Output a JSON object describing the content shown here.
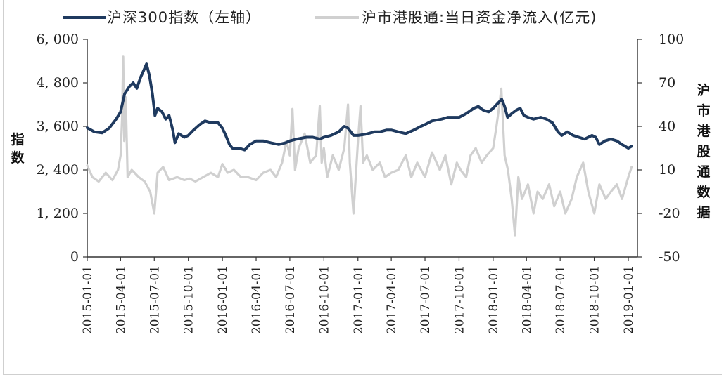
{
  "chart_data": {
    "type": "line",
    "legend": [
      {
        "label": "沪深300指数（左轴）",
        "color": "#1f3a5f"
      },
      {
        "label": "沪市港股通:当日资金净流入(亿元)",
        "color": "#d0d0d0"
      }
    ],
    "y_left": {
      "title": "指数",
      "range": [
        0,
        6000
      ],
      "ticks": [
        0,
        1200,
        2400,
        3600,
        4800,
        6000
      ],
      "tick_labels": [
        "0",
        "1, 200",
        "2, 400",
        "3, 600",
        "4, 800",
        "6, 000"
      ]
    },
    "y_right": {
      "title": "沪市港股通数据",
      "range": [
        -50,
        100
      ],
      "ticks": [
        -50,
        -20,
        10,
        40,
        70,
        100
      ],
      "tick_labels": [
        "-50",
        "-20",
        "10",
        "40",
        "70",
        "100"
      ]
    },
    "x": {
      "range": [
        "2015-01-01",
        "2019-01-15"
      ],
      "ticks": [
        "2015-01-01",
        "2015-04-01",
        "2015-07-01",
        "2015-10-01",
        "2016-01-01",
        "2016-04-01",
        "2016-07-01",
        "2016-10-01",
        "2017-01-01",
        "2017-04-01",
        "2017-07-01",
        "2017-10-01",
        "2018-01-01",
        "2018-04-01",
        "2018-07-01",
        "2018-10-01",
        "2019-01-01"
      ]
    },
    "series": [
      {
        "name": "沪深300指数（左轴）",
        "axis": "left",
        "color": "#1f3a5f",
        "points": [
          [
            "2015-01-01",
            3560
          ],
          [
            "2015-01-20",
            3450
          ],
          [
            "2015-02-10",
            3420
          ],
          [
            "2015-03-01",
            3550
          ],
          [
            "2015-03-20",
            3800
          ],
          [
            "2015-04-01",
            4000
          ],
          [
            "2015-04-12",
            4500
          ],
          [
            "2015-04-25",
            4700
          ],
          [
            "2015-05-05",
            4800
          ],
          [
            "2015-05-15",
            4650
          ],
          [
            "2015-05-25",
            4950
          ],
          [
            "2015-06-05",
            5200
          ],
          [
            "2015-06-10",
            5320
          ],
          [
            "2015-06-18",
            5000
          ],
          [
            "2015-06-26",
            4500
          ],
          [
            "2015-07-03",
            3900
          ],
          [
            "2015-07-10",
            4100
          ],
          [
            "2015-07-22",
            4000
          ],
          [
            "2015-08-01",
            3800
          ],
          [
            "2015-08-10",
            3900
          ],
          [
            "2015-08-20",
            3500
          ],
          [
            "2015-08-26",
            3150
          ],
          [
            "2015-09-05",
            3400
          ],
          [
            "2015-09-20",
            3300
          ],
          [
            "2015-10-01",
            3350
          ],
          [
            "2015-10-15",
            3500
          ],
          [
            "2015-11-01",
            3650
          ],
          [
            "2015-11-15",
            3750
          ],
          [
            "2015-12-01",
            3700
          ],
          [
            "2015-12-20",
            3700
          ],
          [
            "2016-01-01",
            3550
          ],
          [
            "2016-01-10",
            3350
          ],
          [
            "2016-01-20",
            3100
          ],
          [
            "2016-01-28",
            3000
          ],
          [
            "2016-02-15",
            3000
          ],
          [
            "2016-03-01",
            2950
          ],
          [
            "2016-03-15",
            3100
          ],
          [
            "2016-04-01",
            3200
          ],
          [
            "2016-04-20",
            3200
          ],
          [
            "2016-05-10",
            3150
          ],
          [
            "2016-06-01",
            3100
          ],
          [
            "2016-06-20",
            3150
          ],
          [
            "2016-07-01",
            3200
          ],
          [
            "2016-07-20",
            3250
          ],
          [
            "2016-08-15",
            3300
          ],
          [
            "2016-09-01",
            3300
          ],
          [
            "2016-09-20",
            3250
          ],
          [
            "2016-10-01",
            3300
          ],
          [
            "2016-10-20",
            3350
          ],
          [
            "2016-11-10",
            3450
          ],
          [
            "2016-11-25",
            3600
          ],
          [
            "2016-12-05",
            3550
          ],
          [
            "2016-12-20",
            3350
          ],
          [
            "2017-01-01",
            3350
          ],
          [
            "2017-01-20",
            3380
          ],
          [
            "2017-02-15",
            3450
          ],
          [
            "2017-03-01",
            3450
          ],
          [
            "2017-03-20",
            3500
          ],
          [
            "2017-04-01",
            3500
          ],
          [
            "2017-04-20",
            3450
          ],
          [
            "2017-05-10",
            3400
          ],
          [
            "2017-06-01",
            3500
          ],
          [
            "2017-06-20",
            3600
          ],
          [
            "2017-07-01",
            3650
          ],
          [
            "2017-07-20",
            3750
          ],
          [
            "2017-08-15",
            3800
          ],
          [
            "2017-09-01",
            3850
          ],
          [
            "2017-09-20",
            3850
          ],
          [
            "2017-10-01",
            3850
          ],
          [
            "2017-10-20",
            3950
          ],
          [
            "2017-11-10",
            4100
          ],
          [
            "2017-11-22",
            4150
          ],
          [
            "2017-12-05",
            4050
          ],
          [
            "2017-12-20",
            4000
          ],
          [
            "2018-01-01",
            4100
          ],
          [
            "2018-01-15",
            4250
          ],
          [
            "2018-01-24",
            4350
          ],
          [
            "2018-02-01",
            4150
          ],
          [
            "2018-02-09",
            3850
          ],
          [
            "2018-02-20",
            3950
          ],
          [
            "2018-03-05",
            4050
          ],
          [
            "2018-03-15",
            4100
          ],
          [
            "2018-03-25",
            3900
          ],
          [
            "2018-04-05",
            3850
          ],
          [
            "2018-04-20",
            3800
          ],
          [
            "2018-05-10",
            3850
          ],
          [
            "2018-05-25",
            3800
          ],
          [
            "2018-06-10",
            3700
          ],
          [
            "2018-06-25",
            3450
          ],
          [
            "2018-07-05",
            3350
          ],
          [
            "2018-07-20",
            3450
          ],
          [
            "2018-08-05",
            3350
          ],
          [
            "2018-08-20",
            3300
          ],
          [
            "2018-09-05",
            3250
          ],
          [
            "2018-09-25",
            3350
          ],
          [
            "2018-10-05",
            3300
          ],
          [
            "2018-10-15",
            3100
          ],
          [
            "2018-10-30",
            3200
          ],
          [
            "2018-11-15",
            3250
          ],
          [
            "2018-12-01",
            3200
          ],
          [
            "2018-12-15",
            3100
          ],
          [
            "2019-01-01",
            3000
          ],
          [
            "2019-01-10",
            3050
          ]
        ]
      },
      {
        "name": "沪市港股通:当日资金净流入(亿元)",
        "axis": "right",
        "color": "#d0d0d0",
        "points": [
          [
            "2015-01-01",
            13
          ],
          [
            "2015-01-15",
            5
          ],
          [
            "2015-02-01",
            2
          ],
          [
            "2015-02-20",
            8
          ],
          [
            "2015-03-10",
            3
          ],
          [
            "2015-03-25",
            10
          ],
          [
            "2015-04-01",
            20
          ],
          [
            "2015-04-05",
            45
          ],
          [
            "2015-04-08",
            88
          ],
          [
            "2015-04-11",
            30
          ],
          [
            "2015-04-15",
            60
          ],
          [
            "2015-04-20",
            5
          ],
          [
            "2015-05-01",
            10
          ],
          [
            "2015-05-20",
            5
          ],
          [
            "2015-06-05",
            2
          ],
          [
            "2015-06-20",
            -5
          ],
          [
            "2015-07-01",
            -20
          ],
          [
            "2015-07-10",
            8
          ],
          [
            "2015-07-25",
            12
          ],
          [
            "2015-08-10",
            3
          ],
          [
            "2015-09-01",
            5
          ],
          [
            "2015-09-20",
            3
          ],
          [
            "2015-10-05",
            4
          ],
          [
            "2015-10-20",
            2
          ],
          [
            "2015-11-10",
            5
          ],
          [
            "2015-12-01",
            8
          ],
          [
            "2015-12-20",
            5
          ],
          [
            "2016-01-01",
            14
          ],
          [
            "2016-01-15",
            8
          ],
          [
            "2016-02-01",
            10
          ],
          [
            "2016-02-20",
            5
          ],
          [
            "2016-03-10",
            5
          ],
          [
            "2016-04-01",
            3
          ],
          [
            "2016-04-20",
            8
          ],
          [
            "2016-05-10",
            10
          ],
          [
            "2016-05-25",
            5
          ],
          [
            "2016-06-10",
            15
          ],
          [
            "2016-06-22",
            30
          ],
          [
            "2016-07-01",
            20
          ],
          [
            "2016-07-08",
            52
          ],
          [
            "2016-07-15",
            10
          ],
          [
            "2016-07-25",
            25
          ],
          [
            "2016-08-10",
            35
          ],
          [
            "2016-08-25",
            15
          ],
          [
            "2016-09-10",
            20
          ],
          [
            "2016-09-20",
            54
          ],
          [
            "2016-09-25",
            15
          ],
          [
            "2016-10-01",
            25
          ],
          [
            "2016-10-10",
            5
          ],
          [
            "2016-10-25",
            20
          ],
          [
            "2016-11-10",
            10
          ],
          [
            "2016-11-25",
            25
          ],
          [
            "2016-12-05",
            55
          ],
          [
            "2016-12-10",
            15
          ],
          [
            "2016-12-20",
            -20
          ],
          [
            "2017-01-01",
            30
          ],
          [
            "2017-01-08",
            54
          ],
          [
            "2017-01-15",
            15
          ],
          [
            "2017-01-25",
            20
          ],
          [
            "2017-02-10",
            10
          ],
          [
            "2017-03-01",
            15
          ],
          [
            "2017-03-15",
            5
          ],
          [
            "2017-04-01",
            8
          ],
          [
            "2017-04-20",
            10
          ],
          [
            "2017-05-10",
            20
          ],
          [
            "2017-05-25",
            5
          ],
          [
            "2017-06-10",
            15
          ],
          [
            "2017-07-01",
            5
          ],
          [
            "2017-07-20",
            22
          ],
          [
            "2017-08-10",
            10
          ],
          [
            "2017-08-25",
            20
          ],
          [
            "2017-09-10",
            0
          ],
          [
            "2017-09-25",
            15
          ],
          [
            "2017-10-05",
            10
          ],
          [
            "2017-10-20",
            5
          ],
          [
            "2017-11-01",
            20
          ],
          [
            "2017-11-15",
            25
          ],
          [
            "2017-12-01",
            15
          ],
          [
            "2017-12-15",
            20
          ],
          [
            "2018-01-01",
            25
          ],
          [
            "2018-01-10",
            40
          ],
          [
            "2018-01-18",
            55
          ],
          [
            "2018-01-23",
            66
          ],
          [
            "2018-02-01",
            20
          ],
          [
            "2018-02-10",
            10
          ],
          [
            "2018-02-20",
            -10
          ],
          [
            "2018-03-01",
            -35
          ],
          [
            "2018-03-10",
            5
          ],
          [
            "2018-03-20",
            -10
          ],
          [
            "2018-04-05",
            0
          ],
          [
            "2018-04-20",
            -20
          ],
          [
            "2018-05-01",
            -5
          ],
          [
            "2018-05-15",
            -10
          ],
          [
            "2018-06-01",
            0
          ],
          [
            "2018-06-15",
            -15
          ],
          [
            "2018-07-01",
            -5
          ],
          [
            "2018-07-15",
            -20
          ],
          [
            "2018-08-01",
            -10
          ],
          [
            "2018-08-15",
            5
          ],
          [
            "2018-09-01",
            15
          ],
          [
            "2018-09-15",
            -5
          ],
          [
            "2018-10-01",
            -20
          ],
          [
            "2018-10-15",
            0
          ],
          [
            "2018-11-01",
            -10
          ],
          [
            "2018-11-15",
            -5
          ],
          [
            "2018-12-01",
            0
          ],
          [
            "2018-12-15",
            -10
          ],
          [
            "2019-01-01",
            5
          ],
          [
            "2019-01-10",
            12
          ]
        ]
      }
    ]
  }
}
